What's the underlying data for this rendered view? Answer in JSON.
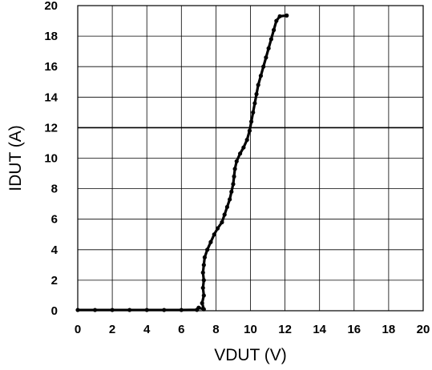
{
  "chart_data": {
    "type": "scatter",
    "title": "",
    "xlabel": "VDUT (V)",
    "ylabel": "IDUT (A)",
    "xlim": [
      0,
      20
    ],
    "ylim": [
      0,
      20
    ],
    "x_ticks": [
      0,
      2,
      4,
      6,
      8,
      10,
      12,
      14,
      16,
      18,
      20
    ],
    "y_ticks": [
      0,
      2,
      4,
      6,
      8,
      10,
      12,
      14,
      16,
      18,
      20
    ],
    "x_tick_labels": [
      "0",
      "2",
      "4",
      "6",
      "8",
      "10",
      "12",
      "14",
      "16",
      "18",
      "20"
    ],
    "y_tick_labels": [
      "0",
      "2",
      "4",
      "6",
      "8",
      "10",
      "12",
      "14",
      "16",
      "18",
      "20"
    ],
    "grid": true,
    "reference_line_y": 12,
    "series": [
      {
        "color": "#000000",
        "points": [
          [
            0.0,
            0.05
          ],
          [
            1.0,
            0.05
          ],
          [
            2.0,
            0.05
          ],
          [
            3.0,
            0.05
          ],
          [
            4.0,
            0.05
          ],
          [
            5.0,
            0.05
          ],
          [
            6.0,
            0.05
          ],
          [
            6.9,
            0.06
          ],
          [
            7.0,
            0.2
          ],
          [
            7.3,
            0.1
          ],
          [
            7.2,
            0.5
          ],
          [
            7.3,
            1.0
          ],
          [
            7.25,
            1.5
          ],
          [
            7.3,
            2.0
          ],
          [
            7.25,
            2.5
          ],
          [
            7.3,
            3.0
          ],
          [
            7.35,
            3.5
          ],
          [
            7.5,
            4.0
          ],
          [
            7.7,
            4.5
          ],
          [
            7.9,
            5.0
          ],
          [
            8.1,
            5.4
          ],
          [
            8.35,
            5.8
          ],
          [
            8.5,
            6.3
          ],
          [
            8.65,
            6.8
          ],
          [
            8.8,
            7.3
          ],
          [
            8.9,
            7.8
          ],
          [
            9.0,
            8.3
          ],
          [
            9.05,
            8.8
          ],
          [
            9.1,
            9.3
          ],
          [
            9.2,
            9.8
          ],
          [
            9.4,
            10.3
          ],
          [
            9.6,
            10.7
          ],
          [
            9.8,
            11.2
          ],
          [
            9.95,
            11.8
          ],
          [
            10.05,
            12.4
          ],
          [
            10.15,
            13.0
          ],
          [
            10.25,
            13.6
          ],
          [
            10.35,
            14.2
          ],
          [
            10.45,
            14.8
          ],
          [
            10.6,
            15.4
          ],
          [
            10.75,
            16.0
          ],
          [
            10.9,
            16.6
          ],
          [
            11.05,
            17.2
          ],
          [
            11.2,
            17.8
          ],
          [
            11.35,
            18.4
          ],
          [
            11.5,
            19.0
          ],
          [
            11.7,
            19.3
          ],
          [
            12.1,
            19.35
          ]
        ]
      }
    ]
  }
}
